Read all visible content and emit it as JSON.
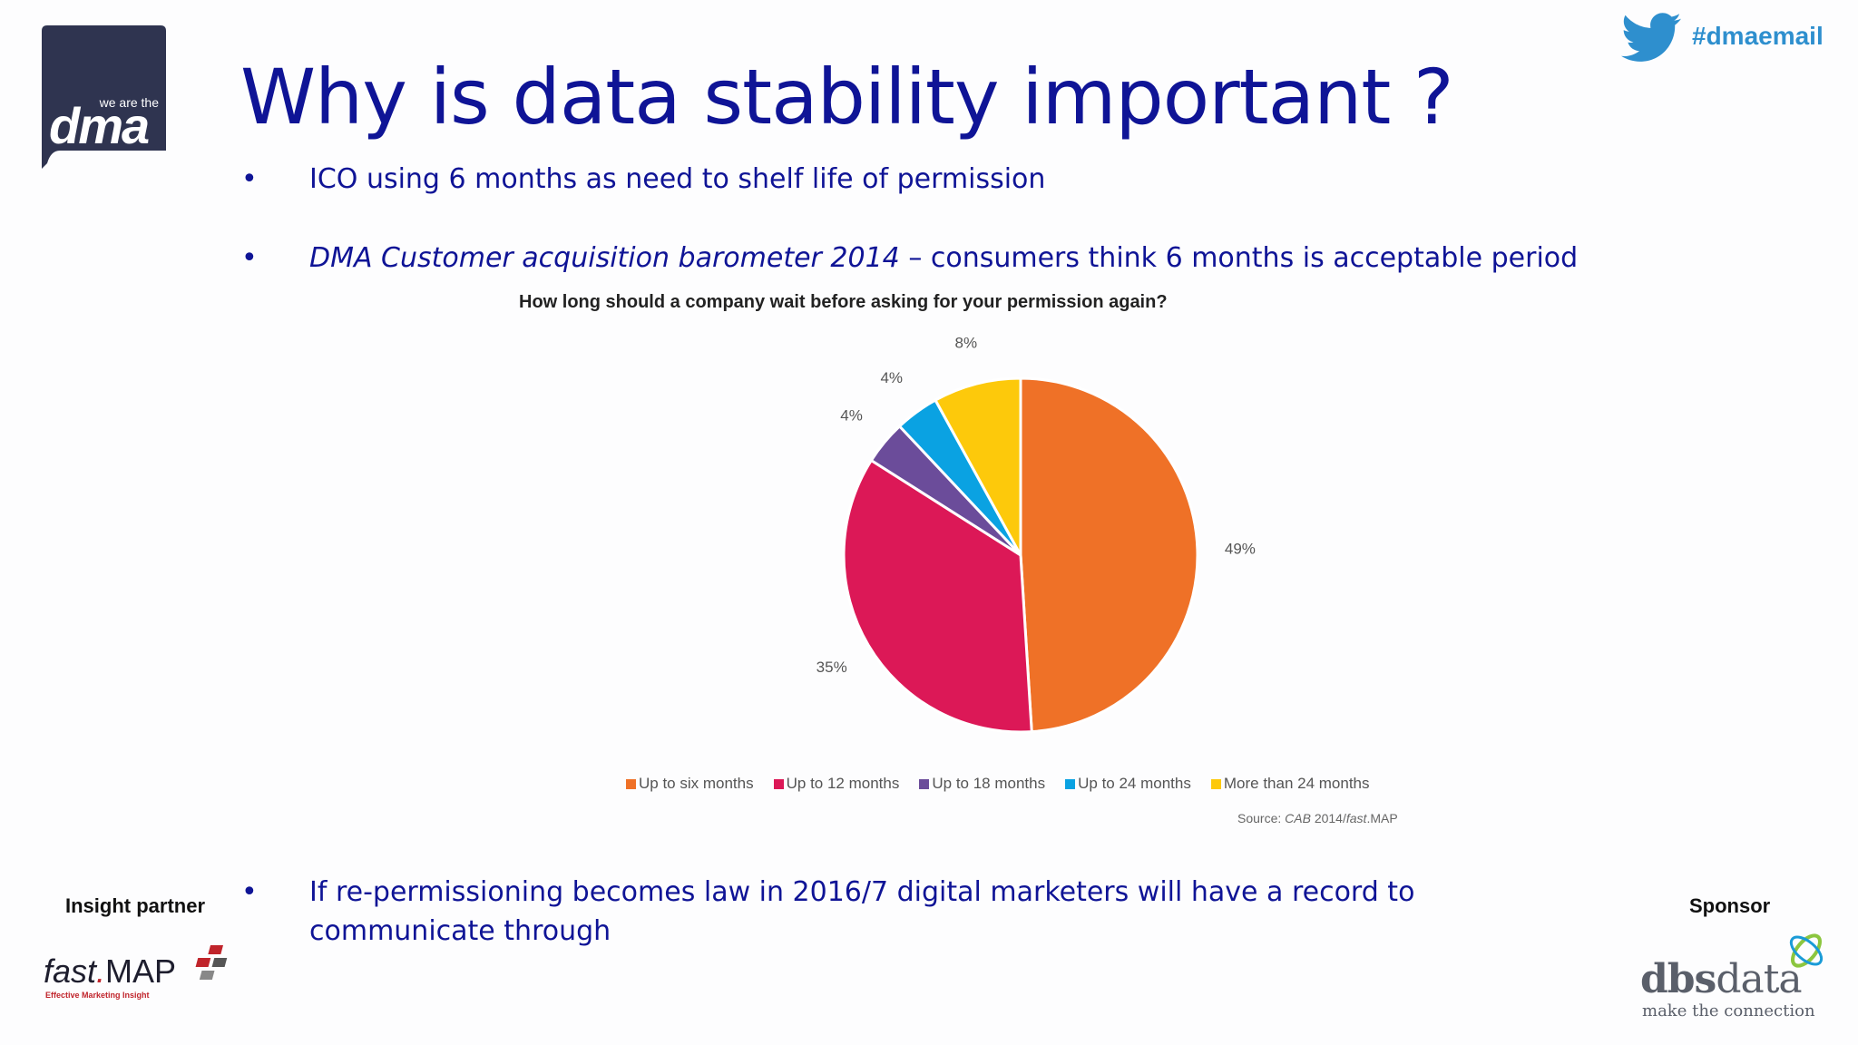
{
  "header": {
    "logo": {
      "small_text": "we are the",
      "big_text": "dma"
    },
    "hashtag": "#dmaemail",
    "title": "Why is data stability important ?"
  },
  "bullets": {
    "marker": "•",
    "b1": "ICO using 6 months as need to shelf life of permission",
    "b2_italic": "DMA Customer acquisition barometer 2014",
    "b2_rest": " – consumers think 6 months is acceptable period",
    "b3": " If re-permissioning becomes law in 2016/7 digital marketers will have a record to communicate through"
  },
  "chart_data": {
    "type": "pie",
    "title": "How long should a company wait before asking for your permission again?",
    "categories": [
      "Up to six months",
      "Up to 12 months",
      "Up to 18 months",
      "Up to 24 months",
      "More than 24 months"
    ],
    "values": [
      49,
      35,
      4,
      4,
      8
    ],
    "labels": [
      "49%",
      "35%",
      "4%",
      "4%",
      "8%"
    ],
    "colors": [
      "#ef7127",
      "#dc1857",
      "#6b4c9a",
      "#0aa2e2",
      "#fdc90b"
    ],
    "legend_position": "bottom",
    "source_prefix": "Source: ",
    "source_italic": "CAB",
    "source_mid": " 2014/",
    "source_italic2": "fast",
    "source_end": ".MAP"
  },
  "footer": {
    "insight_label": "Insight partner",
    "sponsor_label": "Sponsor",
    "fastmap": {
      "fast": "fast",
      "dot": ".",
      "map": "MAP",
      "tagline": "Effective Marketing Insight"
    },
    "dbs": {
      "dbs": "dbs",
      "data": "data",
      "tagline": "make the connection"
    }
  },
  "icons": {
    "twitter": "twitter-bird-icon"
  }
}
